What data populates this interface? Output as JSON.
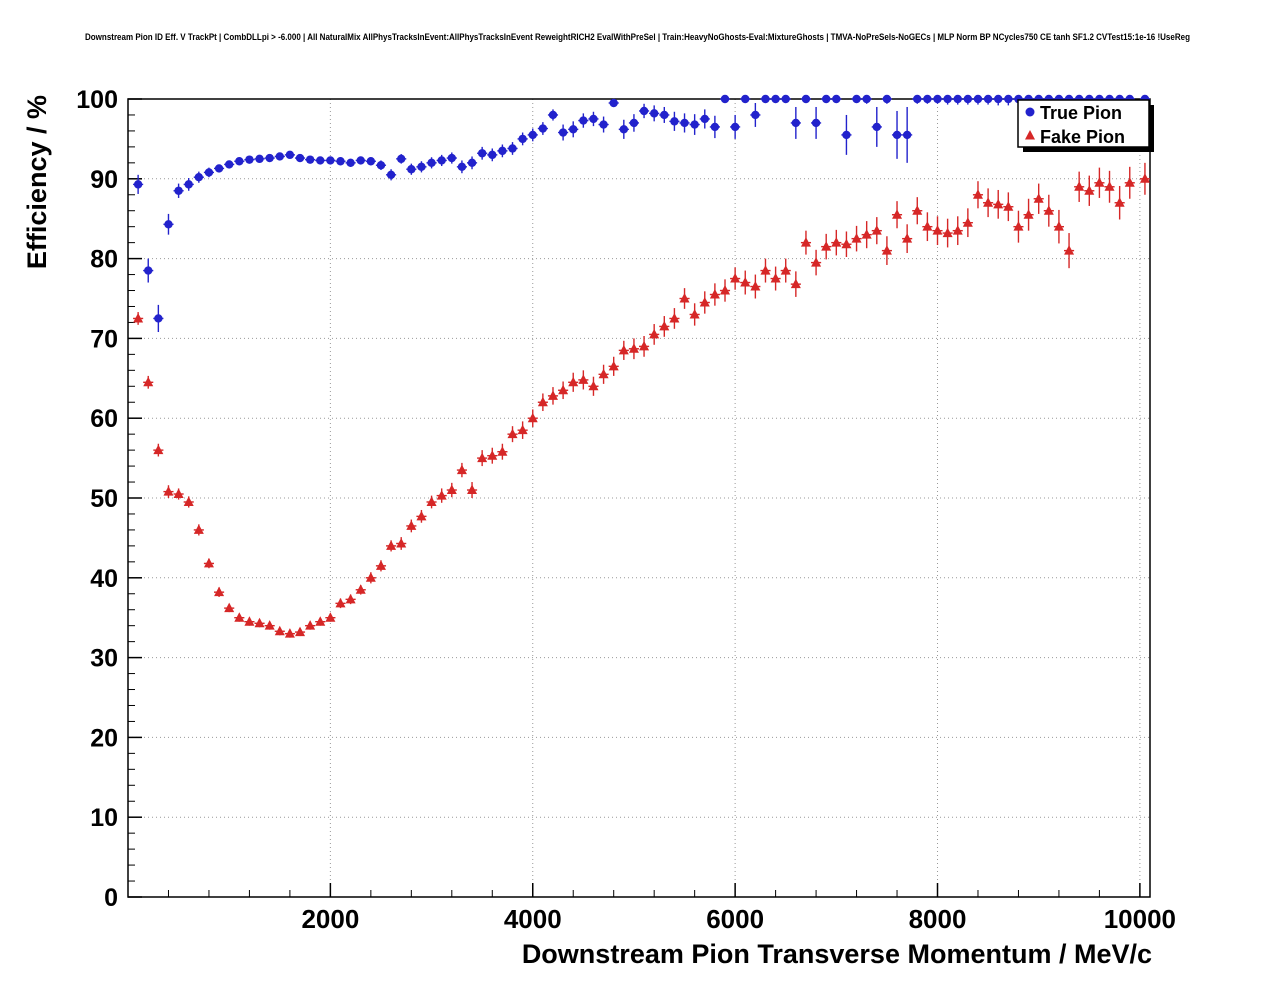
{
  "chart_data": {
    "type": "scatter",
    "title": "Downstream Pion ID Eff. V TrackPt | CombDLLpi > -6.000 | All NaturalMix AllPhysTracksInEvent:AllPhysTracksInEvent ReweightRICH2 EvalWithPreSel | Train:HeavyNoGhosts-Eval:MixtureGhosts | TMVA-NoPreSels-NoGECs | MLP Norm BP NCycles750 CE tanh SF1.2 CVTest15:1e-16 !UseReg",
    "xlabel": "Downstream Pion Transverse Momentum / MeV/c",
    "ylabel": "Efficiency / %",
    "xlim": [
      0,
      10100
    ],
    "ylim": [
      0,
      100
    ],
    "x_ticks": [
      2000,
      4000,
      6000,
      8000,
      10000
    ],
    "y_ticks": [
      0,
      10,
      20,
      30,
      40,
      50,
      60,
      70,
      80,
      90,
      100
    ],
    "x_minor_step": 400,
    "y_minor_step": 2,
    "grid": "dotted",
    "grid_color": "#999999",
    "frame_color": "#000000",
    "legend": {
      "position": "top-right",
      "entries": [
        {
          "label": "True Pion",
          "marker": "circle",
          "color": "#2222cc"
        },
        {
          "label": "Fake Pion",
          "marker": "triangle",
          "color": "#d62727"
        }
      ]
    },
    "series": [
      {
        "name": "True Pion",
        "marker": "circle",
        "color": "#2222cc",
        "bin_half_width": 50,
        "points": [
          [
            100,
            89.3,
            1.2
          ],
          [
            200,
            78.5,
            1.5
          ],
          [
            300,
            72.5,
            1.7
          ],
          [
            400,
            84.3,
            1.3
          ],
          [
            500,
            88.5,
            0.9
          ],
          [
            600,
            89.3,
            0.8
          ],
          [
            700,
            90.2,
            0.7
          ],
          [
            800,
            90.8,
            0.6
          ],
          [
            900,
            91.3,
            0.5
          ],
          [
            1000,
            91.8,
            0.5
          ],
          [
            1100,
            92.2,
            0.4
          ],
          [
            1200,
            92.4,
            0.4
          ],
          [
            1300,
            92.5,
            0.4
          ],
          [
            1400,
            92.6,
            0.4
          ],
          [
            1500,
            92.8,
            0.4
          ],
          [
            1600,
            93.0,
            0.4
          ],
          [
            1700,
            92.6,
            0.4
          ],
          [
            1800,
            92.4,
            0.4
          ],
          [
            1900,
            92.3,
            0.4
          ],
          [
            2000,
            92.3,
            0.4
          ],
          [
            2100,
            92.2,
            0.5
          ],
          [
            2200,
            92.0,
            0.5
          ],
          [
            2300,
            92.3,
            0.5
          ],
          [
            2400,
            92.2,
            0.5
          ],
          [
            2500,
            91.7,
            0.6
          ],
          [
            2600,
            90.5,
            0.7
          ],
          [
            2700,
            92.5,
            0.6
          ],
          [
            2800,
            91.2,
            0.7
          ],
          [
            2900,
            91.5,
            0.7
          ],
          [
            3000,
            92.0,
            0.7
          ],
          [
            3100,
            92.3,
            0.7
          ],
          [
            3200,
            92.6,
            0.7
          ],
          [
            3300,
            91.5,
            0.8
          ],
          [
            3400,
            92.0,
            0.8
          ],
          [
            3500,
            93.2,
            0.8
          ],
          [
            3600,
            93.0,
            0.8
          ],
          [
            3700,
            93.5,
            0.8
          ],
          [
            3800,
            93.8,
            0.8
          ],
          [
            3900,
            95.0,
            0.8
          ],
          [
            4000,
            95.5,
            0.8
          ],
          [
            4100,
            96.3,
            0.8
          ],
          [
            4200,
            98.0,
            0.7
          ],
          [
            4300,
            95.8,
            1.0
          ],
          [
            4400,
            96.2,
            1.0
          ],
          [
            4500,
            97.3,
            0.9
          ],
          [
            4600,
            97.5,
            0.9
          ],
          [
            4700,
            96.8,
            1.0
          ],
          [
            4800,
            99.5,
            0.5
          ],
          [
            4900,
            96.2,
            1.2
          ],
          [
            5000,
            97.0,
            1.1
          ],
          [
            5100,
            98.5,
            0.9
          ],
          [
            5200,
            98.2,
            1.0
          ],
          [
            5300,
            98.0,
            1.0
          ],
          [
            5400,
            97.2,
            1.2
          ],
          [
            5500,
            97.0,
            1.2
          ],
          [
            5600,
            96.8,
            1.3
          ],
          [
            5700,
            97.5,
            1.2
          ],
          [
            5800,
            96.5,
            1.4
          ],
          [
            5900,
            100.0,
            0.3
          ],
          [
            6000,
            96.5,
            1.5
          ],
          [
            6100,
            100.0,
            0.3
          ],
          [
            6200,
            98.0,
            1.5
          ],
          [
            6300,
            100.0,
            0.4
          ],
          [
            6400,
            100.0,
            0.4
          ],
          [
            6500,
            100.0,
            0.4
          ],
          [
            6600,
            97.0,
            2.0
          ],
          [
            6700,
            100.0,
            0.5
          ],
          [
            6800,
            97.0,
            2.0
          ],
          [
            6900,
            100.0,
            0.5
          ],
          [
            7000,
            100.0,
            0.5
          ],
          [
            7100,
            95.5,
            2.5
          ],
          [
            7200,
            100.0,
            0.5
          ],
          [
            7300,
            100.0,
            0.6
          ],
          [
            7400,
            96.5,
            2.5
          ],
          [
            7500,
            100.0,
            0.6
          ],
          [
            7600,
            95.5,
            3.0
          ],
          [
            7700,
            95.5,
            3.5
          ],
          [
            7800,
            100.0,
            0.6
          ],
          [
            7900,
            100.0,
            0.6
          ],
          [
            8000,
            100.0,
            0.6
          ],
          [
            8100,
            100.0,
            0.7
          ],
          [
            8200,
            100.0,
            0.7
          ],
          [
            8300,
            100.0,
            0.7
          ],
          [
            8400,
            100.0,
            0.7
          ],
          [
            8500,
            100.0,
            0.7
          ],
          [
            8600,
            100.0,
            0.8
          ],
          [
            8700,
            100.0,
            0.8
          ],
          [
            8800,
            100.0,
            0.8
          ],
          [
            8900,
            100.0,
            0.8
          ],
          [
            9000,
            100.0,
            0.8
          ],
          [
            9100,
            100.0,
            0.9
          ],
          [
            9200,
            100.0,
            0.9
          ],
          [
            9300,
            100.0,
            0.9
          ],
          [
            9400,
            100.0,
            0.9
          ],
          [
            9500,
            100.0,
            1.0
          ],
          [
            9600,
            100.0,
            1.0
          ],
          [
            9700,
            100.0,
            1.0
          ],
          [
            9800,
            100.0,
            1.0
          ],
          [
            9900,
            100.0,
            1.0
          ],
          [
            10050,
            100.0,
            1.0
          ]
        ]
      },
      {
        "name": "Fake Pion",
        "marker": "triangle",
        "color": "#d62727",
        "bin_half_width": 50,
        "points": [
          [
            100,
            72.5,
            0.8
          ],
          [
            200,
            64.5,
            0.8
          ],
          [
            300,
            56.0,
            0.8
          ],
          [
            400,
            50.8,
            0.8
          ],
          [
            500,
            50.5,
            0.7
          ],
          [
            600,
            49.5,
            0.7
          ],
          [
            700,
            46.0,
            0.7
          ],
          [
            800,
            41.8,
            0.6
          ],
          [
            900,
            38.2,
            0.6
          ],
          [
            1000,
            36.2,
            0.5
          ],
          [
            1100,
            35.0,
            0.5
          ],
          [
            1200,
            34.5,
            0.5
          ],
          [
            1300,
            34.3,
            0.5
          ],
          [
            1400,
            34.0,
            0.5
          ],
          [
            1500,
            33.3,
            0.5
          ],
          [
            1600,
            33.0,
            0.5
          ],
          [
            1700,
            33.2,
            0.5
          ],
          [
            1800,
            34.0,
            0.5
          ],
          [
            1900,
            34.5,
            0.5
          ],
          [
            2000,
            35.0,
            0.5
          ],
          [
            2100,
            36.8,
            0.6
          ],
          [
            2200,
            37.3,
            0.6
          ],
          [
            2300,
            38.5,
            0.6
          ],
          [
            2400,
            40.0,
            0.7
          ],
          [
            2500,
            41.5,
            0.7
          ],
          [
            2600,
            44.0,
            0.7
          ],
          [
            2700,
            44.3,
            0.8
          ],
          [
            2800,
            46.5,
            0.8
          ],
          [
            2900,
            47.7,
            0.8
          ],
          [
            3000,
            49.5,
            0.8
          ],
          [
            3100,
            50.3,
            0.9
          ],
          [
            3200,
            51.0,
            0.9
          ],
          [
            3300,
            53.5,
            0.9
          ],
          [
            3400,
            51.0,
            1.0
          ],
          [
            3500,
            55.0,
            1.0
          ],
          [
            3600,
            55.3,
            1.0
          ],
          [
            3700,
            55.8,
            1.0
          ],
          [
            3800,
            58.0,
            1.0
          ],
          [
            3900,
            58.5,
            1.1
          ],
          [
            4000,
            60.0,
            1.1
          ],
          [
            4100,
            62.0,
            1.1
          ],
          [
            4200,
            62.8,
            1.1
          ],
          [
            4300,
            63.5,
            1.1
          ],
          [
            4400,
            64.5,
            1.2
          ],
          [
            4500,
            64.8,
            1.2
          ],
          [
            4600,
            64.0,
            1.2
          ],
          [
            4700,
            65.5,
            1.2
          ],
          [
            4800,
            66.5,
            1.2
          ],
          [
            4900,
            68.5,
            1.2
          ],
          [
            5000,
            68.7,
            1.3
          ],
          [
            5100,
            69.0,
            1.3
          ],
          [
            5200,
            70.5,
            1.3
          ],
          [
            5300,
            71.5,
            1.3
          ],
          [
            5400,
            72.5,
            1.3
          ],
          [
            5500,
            75.0,
            1.3
          ],
          [
            5600,
            73.0,
            1.4
          ],
          [
            5700,
            74.5,
            1.4
          ],
          [
            5800,
            75.5,
            1.4
          ],
          [
            5900,
            76.0,
            1.4
          ],
          [
            6000,
            77.5,
            1.4
          ],
          [
            6100,
            77.0,
            1.5
          ],
          [
            6200,
            76.5,
            1.5
          ],
          [
            6300,
            78.5,
            1.5
          ],
          [
            6400,
            77.5,
            1.5
          ],
          [
            6500,
            78.5,
            1.5
          ],
          [
            6600,
            76.8,
            1.6
          ],
          [
            6700,
            82.0,
            1.5
          ],
          [
            6800,
            79.5,
            1.6
          ],
          [
            6900,
            81.5,
            1.6
          ],
          [
            7000,
            82.0,
            1.6
          ],
          [
            7100,
            81.8,
            1.6
          ],
          [
            7200,
            82.5,
            1.6
          ],
          [
            7300,
            83.0,
            1.7
          ],
          [
            7400,
            83.5,
            1.7
          ],
          [
            7500,
            81.0,
            1.8
          ],
          [
            7600,
            85.5,
            1.7
          ],
          [
            7700,
            82.5,
            1.8
          ],
          [
            7800,
            86.0,
            1.7
          ],
          [
            7900,
            84.0,
            1.8
          ],
          [
            8000,
            83.5,
            1.8
          ],
          [
            8100,
            83.2,
            1.8
          ],
          [
            8200,
            83.5,
            1.8
          ],
          [
            8300,
            84.5,
            1.8
          ],
          [
            8400,
            88.0,
            1.7
          ],
          [
            8500,
            87.0,
            1.8
          ],
          [
            8600,
            86.8,
            1.8
          ],
          [
            8700,
            86.5,
            1.8
          ],
          [
            8800,
            84.0,
            2.0
          ],
          [
            8900,
            85.5,
            2.0
          ],
          [
            9000,
            87.5,
            1.9
          ],
          [
            9100,
            86.0,
            2.0
          ],
          [
            9200,
            84.0,
            2.1
          ],
          [
            9300,
            81.0,
            2.2
          ],
          [
            9400,
            89.0,
            1.9
          ],
          [
            9500,
            88.5,
            1.9
          ],
          [
            9600,
            89.5,
            1.9
          ],
          [
            9700,
            89.0,
            2.0
          ],
          [
            9800,
            87.0,
            2.1
          ],
          [
            9900,
            89.5,
            2.0
          ],
          [
            10050,
            90.0,
            2.0
          ]
        ]
      }
    ]
  }
}
